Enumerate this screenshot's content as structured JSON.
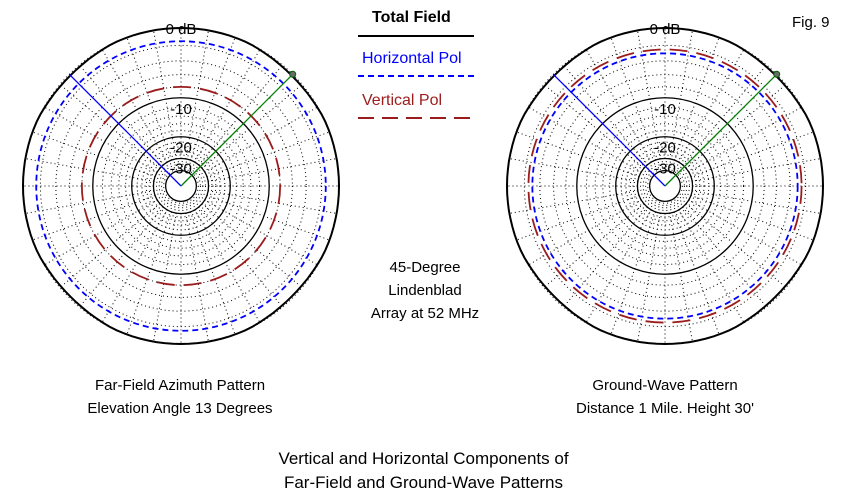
{
  "figure_label": "Fig. 9",
  "legend": {
    "title": "Total Field",
    "horizontal_label": "Horizontal Pol",
    "vertical_label": "Vertical Pol",
    "horizontal_color": "#0000ff",
    "vertical_color": "#9b1c1c",
    "total_color": "#000000"
  },
  "center_text": [
    "45-Degree",
    "Lindenblad",
    "Array at 52 MHz"
  ],
  "bottom_caption": [
    "Vertical and Horizontal Components of",
    "Far-Field and Ground-Wave Patterns"
  ],
  "chart_data": [
    {
      "type": "polar",
      "title_lines": [
        "Far-Field Azimuth Pattern",
        "Elevation Angle 13 Degrees"
      ],
      "ring_labels": [
        "0 dB",
        "-10",
        "-20",
        "-30"
      ],
      "radial_scale": "log (dB)",
      "grid": true,
      "series": [
        {
          "name": "Total Field",
          "level_db": 0,
          "shape": "near-circular",
          "style": "solid"
        },
        {
          "name": "Horizontal Pol",
          "level_db": -1.5,
          "shape": "near-circular",
          "style": "dashed"
        },
        {
          "name": "Vertical Pol",
          "level_db": -8,
          "shape": "circular",
          "style": "long-dash"
        }
      ],
      "cursor_lines": [
        {
          "color": "#0000ff",
          "azimuth_deg": 315
        },
        {
          "color": "#008000",
          "azimuth_deg": 45
        }
      ]
    },
    {
      "type": "polar",
      "title_lines": [
        "Ground-Wave Pattern",
        "Distance 1 Mile. Height 30'"
      ],
      "ring_labels": [
        "0 dB",
        "-10",
        "-20",
        "-30"
      ],
      "radial_scale": "log (dB)",
      "grid": true,
      "series": [
        {
          "name": "Total Field",
          "level_db": 0,
          "shape": "near-circular",
          "style": "solid"
        },
        {
          "name": "Horizontal Pol",
          "level_db": -3,
          "shape": "near-circular",
          "style": "dashed"
        },
        {
          "name": "Vertical Pol",
          "level_db": -2.5,
          "shape": "near-circular",
          "style": "long-dash"
        }
      ],
      "cursor_lines": [
        {
          "color": "#0000ff",
          "azimuth_deg": 315
        },
        {
          "color": "#008000",
          "azimuth_deg": 45
        }
      ]
    }
  ]
}
